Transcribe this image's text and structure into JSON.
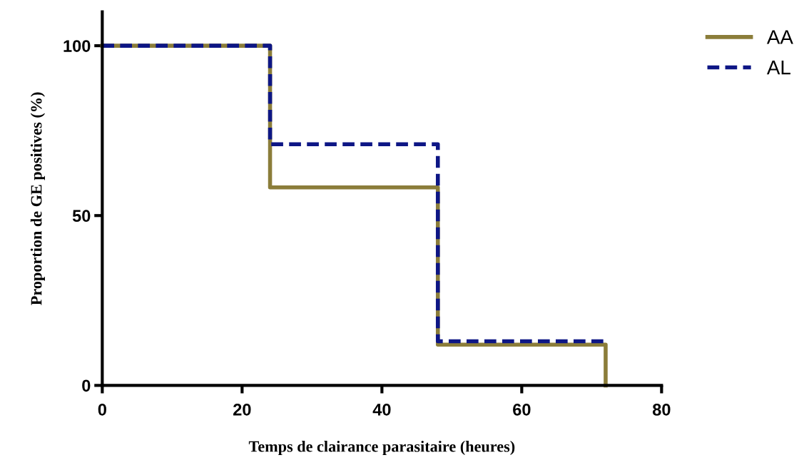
{
  "chart_data": {
    "type": "step",
    "xlabel": "Temps de clairance parasitaire (heures)",
    "ylabel": "Proportion de GE positives (%)",
    "x": [
      0,
      24,
      48,
      72
    ],
    "series": [
      {
        "name": "AA",
        "color": "#8b7d3a",
        "values": [
          100,
          58.3,
          12,
          0
        ],
        "line_style": "solid"
      },
      {
        "name": "AL",
        "color": "#0d1685",
        "values": [
          100,
          71,
          13,
          13
        ],
        "line_style": "dashed"
      }
    ],
    "xlim": [
      0,
      80
    ],
    "xticks": [
      0,
      20,
      40,
      60,
      80
    ],
    "ylim": [
      0,
      110
    ],
    "yticks": [
      0,
      50,
      100
    ],
    "grid": false,
    "legend": "top right"
  }
}
